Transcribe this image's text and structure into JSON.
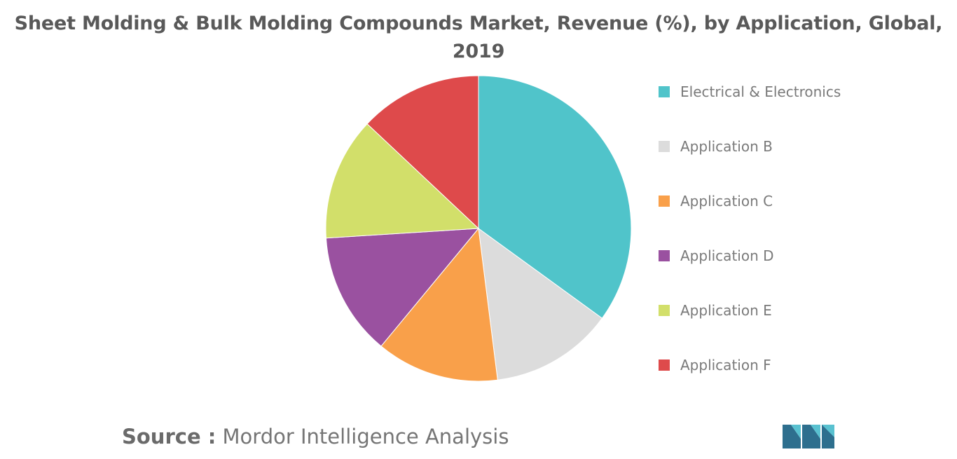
{
  "chart_data": {
    "type": "pie",
    "title_lines": [
      "Sheet Molding & Bulk Molding Compounds Market, Revenue (%), by Application, Global,",
      "2019"
    ],
    "slices": [
      {
        "label": "Electrical & Electronics",
        "value": 35,
        "color": "#50c4ca"
      },
      {
        "label": "Application B",
        "value": 13,
        "color": "#dcdcdc"
      },
      {
        "label": "Application C",
        "value": 13,
        "color": "#f9a04a"
      },
      {
        "label": "Application D",
        "value": 13,
        "color": "#9a51a0"
      },
      {
        "label": "Application E",
        "value": 13,
        "color": "#d2df6a"
      },
      {
        "label": "Application F",
        "value": 13,
        "color": "#de4a4b"
      }
    ],
    "legend_position": "right"
  },
  "source": {
    "label": "Source :",
    "text": "Mordor Intelligence Analysis"
  }
}
